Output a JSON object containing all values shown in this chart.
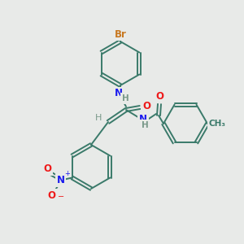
{
  "background_color": "#e8eae8",
  "bond_color": "#3a7a6a",
  "atom_colors": {
    "Br": "#c87820",
    "N": "#1a1aee",
    "O": "#ee1a1a",
    "H": "#7a9a8a",
    "C": "#3a7a6a"
  },
  "figsize": [
    3.0,
    3.0
  ],
  "dpi": 100,
  "lw": 1.4,
  "ring_r": 28
}
